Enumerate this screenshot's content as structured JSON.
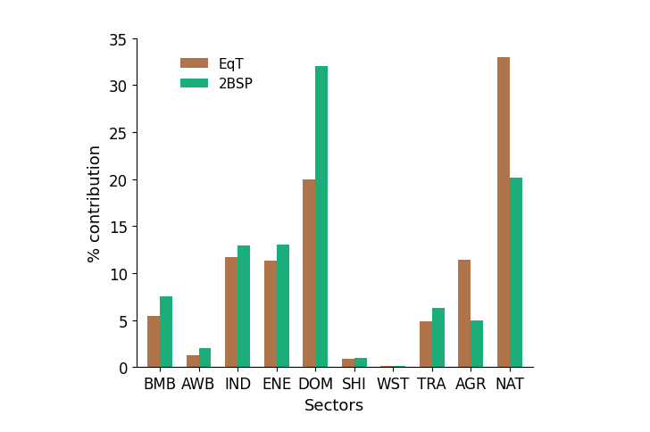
{
  "chart_data": {
    "type": "bar",
    "x_label": "Sectors",
    "y_label": "% contribution",
    "categories": [
      "BMB",
      "AWB",
      "IND",
      "ENE",
      "DOM",
      "SHI",
      "WST",
      "TRA",
      "AGR",
      "NAT"
    ],
    "series": [
      {
        "name": "EqT",
        "color": "#b0744b",
        "values": [
          5.4,
          1.3,
          11.7,
          11.3,
          20.0,
          0.9,
          0.1,
          4.9,
          11.4,
          33.0
        ]
      },
      {
        "name": "2BSP",
        "color": "#1cae78",
        "values": [
          7.5,
          2.0,
          12.9,
          13.0,
          32.0,
          1.0,
          0.1,
          6.3,
          5.0,
          20.2
        ]
      }
    ],
    "ylim": [
      0,
      35
    ],
    "yticks": [
      0,
      5,
      10,
      15,
      20,
      25,
      30,
      35
    ],
    "legend": "upper left",
    "grid": false
  }
}
